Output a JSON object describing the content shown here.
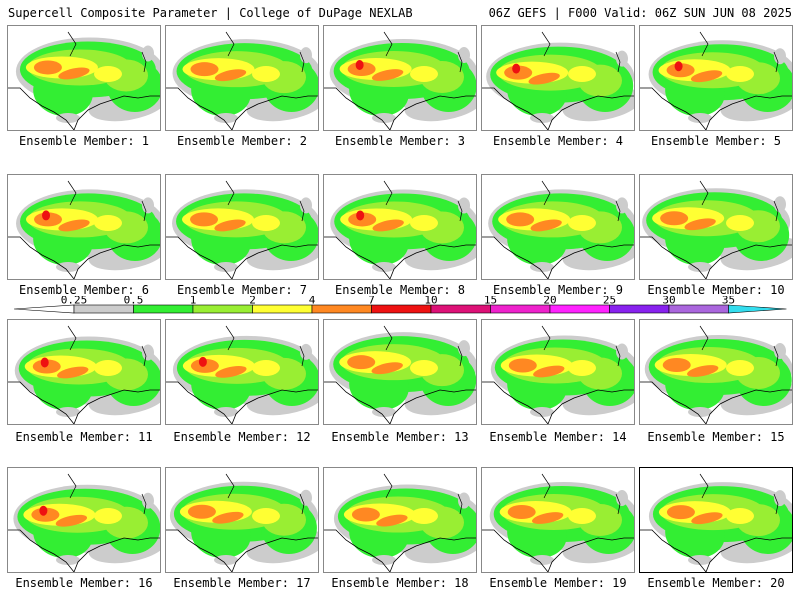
{
  "header": {
    "left": "Supercell Composite Parameter | College of DuPage NEXLAB",
    "right": "06Z GEFS | F000 Valid: 06Z SUN JUN 08 2025"
  },
  "map": {
    "background": "#ffffff",
    "boundary_color": "#000000",
    "selected_index": 20
  },
  "colorbar": {
    "ticks": [
      "0.25",
      "0.5",
      "1",
      "2",
      "4",
      "7",
      "10",
      "15",
      "20",
      "25",
      "30",
      "35"
    ],
    "colors": [
      "#ffffff",
      "#cccccc",
      "#33ee33",
      "#99ee33",
      "#ffff33",
      "#ff8822",
      "#ee1111",
      "#dd1177",
      "#ee22cc",
      "#ff22ff",
      "#8822ee",
      "#aa66dd",
      "#33ddee"
    ]
  },
  "panels": [
    {
      "label": "Ensemble Member: 1"
    },
    {
      "label": "Ensemble Member: 2"
    },
    {
      "label": "Ensemble Member: 3"
    },
    {
      "label": "Ensemble Member: 4"
    },
    {
      "label": "Ensemble Member: 5"
    },
    {
      "label": "Ensemble Member: 6"
    },
    {
      "label": "Ensemble Member: 7"
    },
    {
      "label": "Ensemble Member: 8"
    },
    {
      "label": "Ensemble Member: 9"
    },
    {
      "label": "Ensemble Member: 10"
    },
    {
      "label": "Ensemble Member: 11"
    },
    {
      "label": "Ensemble Member: 12"
    },
    {
      "label": "Ensemble Member: 13"
    },
    {
      "label": "Ensemble Member: 14"
    },
    {
      "label": "Ensemble Member: 15"
    },
    {
      "label": "Ensemble Member: 16"
    },
    {
      "label": "Ensemble Member: 17"
    },
    {
      "label": "Ensemble Member: 18"
    },
    {
      "label": "Ensemble Member: 19"
    },
    {
      "label": "Ensemble Member: 20"
    }
  ]
}
